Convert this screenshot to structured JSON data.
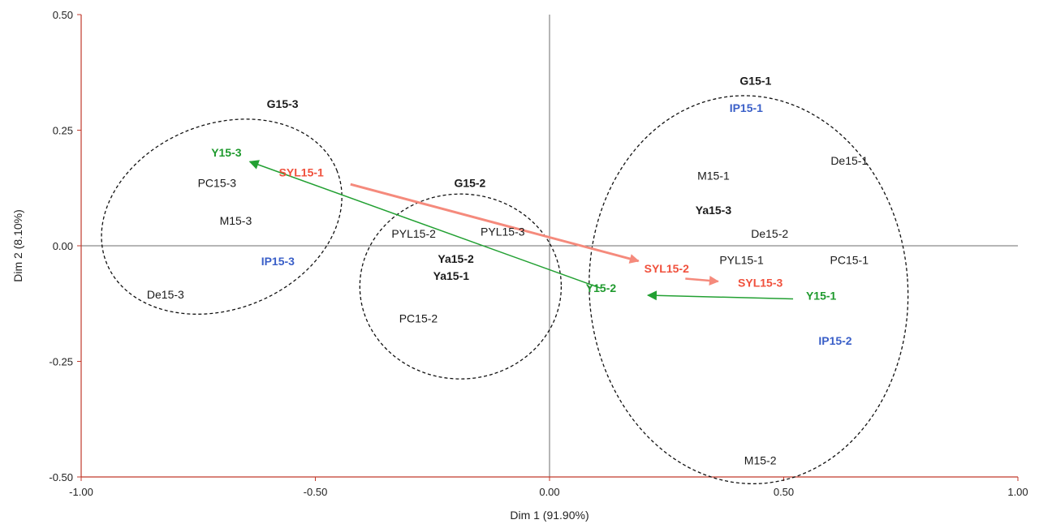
{
  "chart_data": {
    "type": "scatter",
    "title": "",
    "xlabel": "Dim 1 (91.90%)",
    "ylabel": "Dim 2 (8.10%)",
    "xlim": [
      -1.0,
      1.0
    ],
    "ylim": [
      -0.5,
      0.5
    ],
    "x_ticks": [
      "-1.00",
      "-0.50",
      "0.00",
      "0.50",
      "1.00"
    ],
    "y_ticks": [
      "0.50",
      "0.25",
      "0.00",
      "-0.25",
      "-0.50"
    ],
    "colors": {
      "default": "#1a1a1a",
      "blue": "#3a5fc8",
      "green": "#1f9a2e",
      "red": "#f0503c",
      "red_arrow": "#f58a7c",
      "green_arrow": "#22a032",
      "axis": "#c0392b",
      "zero_line": "#6e6e6e"
    },
    "points": [
      {
        "label": "G15-1",
        "x": 0.44,
        "y": 0.357,
        "style": "bold",
        "color": "default"
      },
      {
        "label": "IP15-1",
        "x": 0.42,
        "y": 0.298,
        "style": "bold",
        "color": "blue"
      },
      {
        "label": "De15-1",
        "x": 0.64,
        "y": 0.184,
        "style": "normal",
        "color": "default"
      },
      {
        "label": "M15-1",
        "x": 0.35,
        "y": 0.152,
        "style": "normal",
        "color": "default"
      },
      {
        "label": "Ya15-3",
        "x": 0.35,
        "y": 0.077,
        "style": "bold",
        "color": "default"
      },
      {
        "label": "De15-2",
        "x": 0.47,
        "y": 0.026,
        "style": "normal",
        "color": "default"
      },
      {
        "label": "PYL15-1",
        "x": 0.41,
        "y": -0.031,
        "style": "normal",
        "color": "default"
      },
      {
        "label": "PC15-1",
        "x": 0.64,
        "y": -0.031,
        "style": "normal",
        "color": "default"
      },
      {
        "label": "SYL15-2",
        "x": 0.25,
        "y": -0.049,
        "style": "bold",
        "color": "red"
      },
      {
        "label": "SYL15-3",
        "x": 0.45,
        "y": -0.08,
        "style": "bold",
        "color": "red"
      },
      {
        "label": "Y15-1",
        "x": 0.58,
        "y": -0.108,
        "style": "bold",
        "color": "green"
      },
      {
        "label": "Y15-2",
        "x": 0.11,
        "y": -0.091,
        "style": "bold",
        "color": "green"
      },
      {
        "label": "IP15-2",
        "x": 0.61,
        "y": -0.205,
        "style": "bold",
        "color": "blue"
      },
      {
        "label": "M15-2",
        "x": 0.45,
        "y": -0.464,
        "style": "normal",
        "color": "default"
      },
      {
        "label": "G15-2",
        "x": -0.17,
        "y": 0.136,
        "style": "bold",
        "color": "default"
      },
      {
        "label": "PYL15-2",
        "x": -0.29,
        "y": 0.026,
        "style": "normal",
        "color": "default"
      },
      {
        "label": "PYL15-3",
        "x": -0.1,
        "y": 0.031,
        "style": "normal",
        "color": "default"
      },
      {
        "label": "Ya15-2",
        "x": -0.2,
        "y": -0.028,
        "style": "bold",
        "color": "default"
      },
      {
        "label": "Ya15-1",
        "x": -0.21,
        "y": -0.065,
        "style": "bold",
        "color": "default"
      },
      {
        "label": "PC15-2",
        "x": -0.28,
        "y": -0.157,
        "style": "normal",
        "color": "default"
      },
      {
        "label": "G15-3",
        "x": -0.57,
        "y": 0.307,
        "style": "bold",
        "color": "default"
      },
      {
        "label": "Y15-3",
        "x": -0.69,
        "y": 0.202,
        "style": "bold",
        "color": "green"
      },
      {
        "label": "SYL15-1",
        "x": -0.53,
        "y": 0.159,
        "style": "bold",
        "color": "red"
      },
      {
        "label": "PC15-3",
        "x": -0.71,
        "y": 0.136,
        "style": "normal",
        "color": "default"
      },
      {
        "label": "M15-3",
        "x": -0.67,
        "y": 0.054,
        "style": "normal",
        "color": "default"
      },
      {
        "label": "IP15-3",
        "x": -0.58,
        "y": -0.033,
        "style": "bold",
        "color": "blue"
      },
      {
        "label": "De15-3",
        "x": -0.82,
        "y": -0.105,
        "style": "normal",
        "color": "default"
      }
    ],
    "ellipses": [
      {
        "group": "G15-1",
        "cx": 0.425,
        "cy": -0.095,
        "rx": 0.34,
        "ry": 0.42,
        "rotation": -4
      },
      {
        "group": "G15-2",
        "cx": -0.19,
        "cy": -0.088,
        "rx": 0.215,
        "ry": 0.2
      },
      {
        "group": "G15-3",
        "cx": -0.7,
        "cy": 0.063,
        "rx": 0.265,
        "ry": 0.2,
        "rotation": -22
      }
    ],
    "arrows": [
      {
        "from": [
          -0.425,
          0.133
        ],
        "to": [
          0.19,
          -0.033
        ],
        "color": "red_arrow",
        "width": 3
      },
      {
        "from": [
          0.29,
          -0.071
        ],
        "to": [
          0.36,
          -0.077
        ],
        "color": "red_arrow",
        "width": 2.5
      },
      {
        "from": [
          0.11,
          -0.092
        ],
        "to": [
          -0.64,
          0.182
        ],
        "color": "green_arrow",
        "width": 1.5
      },
      {
        "from": [
          0.52,
          -0.115
        ],
        "to": [
          0.21,
          -0.107
        ],
        "color": "green_arrow",
        "width": 1.5
      }
    ]
  }
}
